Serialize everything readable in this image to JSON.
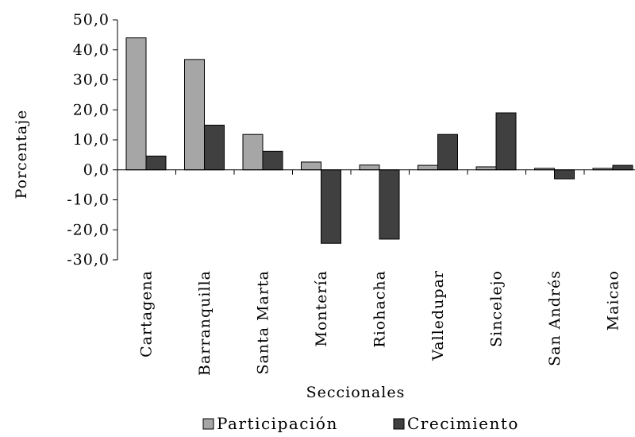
{
  "chart_data": {
    "type": "bar",
    "xlabel": "Seccionales",
    "ylabel": "Porcentaje",
    "ylim": [
      -30,
      50
    ],
    "yticks": [
      50,
      40,
      30,
      20,
      10,
      0,
      -10,
      -20,
      -30
    ],
    "ytick_labels": [
      "50,0",
      "40,0",
      "30,0",
      "20,0",
      "10,0",
      "0,0",
      "-10,0",
      "-20,0",
      "-30,0"
    ],
    "categories": [
      "Cartagena",
      "Barranquilla",
      "Santa Marta",
      "Montería",
      "Riohacha",
      "Valledupar",
      "Sincelejo",
      "San Andrés",
      "Maicao"
    ],
    "series": [
      {
        "name": "Participación",
        "color": "#a6a6a6",
        "values": [
          44.0,
          36.8,
          11.8,
          2.6,
          1.6,
          1.5,
          1.0,
          0.5,
          0.5
        ]
      },
      {
        "name": "Crecimiento",
        "color": "#404040",
        "values": [
          4.6,
          14.9,
          6.2,
          -24.5,
          -23.1,
          11.8,
          19.0,
          -3.0,
          1.5
        ]
      }
    ],
    "grid": false,
    "legend_position": "bottom"
  }
}
